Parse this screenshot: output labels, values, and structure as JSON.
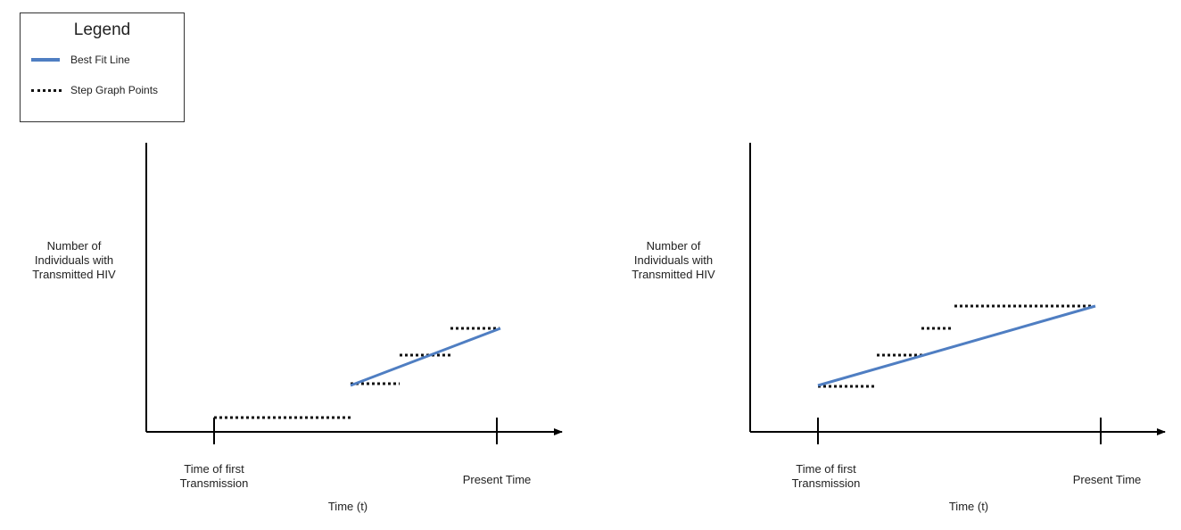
{
  "legend": {
    "title": "Legend",
    "items": [
      {
        "label": "Best Fit Line",
        "style": "solid",
        "color": "#4f7ec2"
      },
      {
        "label": "Step Graph Points",
        "style": "dotted",
        "color": "#111111"
      }
    ]
  },
  "panels": [
    {
      "y_label_lines": [
        "Number  of",
        "Individuals with",
        "Transmitted HIV"
      ],
      "x_label": "Time (t)",
      "tick_start_lines": [
        "Time of first",
        "Transmission"
      ],
      "tick_end": "Present Time"
    },
    {
      "y_label_lines": [
        "Number  of",
        "Individuals with",
        "Transmitted HIV"
      ],
      "x_label": "Time (t)",
      "tick_start_lines": [
        "Time of first",
        "Transmission"
      ],
      "tick_end": "Present Time"
    }
  ],
  "colors": {
    "fit_line": "#4f7ec2",
    "steps": "#111111",
    "axes": "#000000"
  }
}
